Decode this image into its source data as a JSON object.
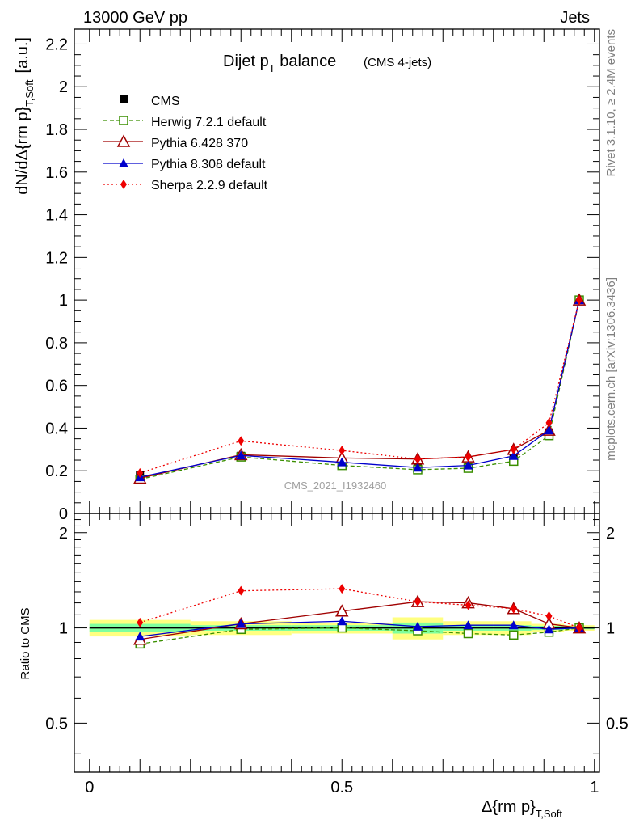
{
  "header": {
    "left": "13000 GeV pp",
    "right": "Jets",
    "side_top": "Rivet 3.1.10, ≥ 2.4M events",
    "side_bottom": "mcplots.cern.ch [arXiv:1306.3436]",
    "watermark": "CMS_2021_I1932460"
  },
  "chart_data": {
    "type": "line",
    "title": "Dijet p",
    "title_sub": "T",
    "title_rest": " balance",
    "title_extra": "(CMS 4-jets)",
    "xlabel": "Δ{rm p}",
    "xlabel_sub": "T,Soft",
    "ylabel": "dN/dΔ{rm p}",
    "ylabel_sub": "T,Soft",
    "ylabel_unit": "[a.u.]",
    "ratio_ylabel": "Ratio to CMS",
    "xlim": [
      -0.03,
      1.01
    ],
    "ylim": [
      0,
      2.27
    ],
    "ratio_ylim": [
      0.35,
      2.3
    ],
    "x_ticks": [
      "0",
      "0.5",
      "1"
    ],
    "y_ticks": [
      "0",
      "0.2",
      "0.4",
      "0.6",
      "0.8",
      "1",
      "1.2",
      "1.4",
      "1.6",
      "1.8",
      "2",
      "2.2"
    ],
    "ratio_ticks": [
      "0.5",
      "1",
      "2"
    ],
    "legend_position": "top-left",
    "x": [
      0.1,
      0.3,
      0.5,
      0.65,
      0.75,
      0.84,
      0.91,
      0.97
    ],
    "data": {
      "name": "CMS",
      "color": "#000000",
      "values": [
        0.18,
        0.27,
        0.23,
        0.21,
        0.22,
        0.26,
        0.38,
        1.0
      ]
    },
    "bands": {
      "inner_color": "#7fff9f",
      "outer_color": "#ffff80",
      "segments": [
        {
          "x0": 0.0,
          "x1": 0.2,
          "inner": [
            0.97,
            1.03
          ],
          "outer": [
            0.94,
            1.06
          ]
        },
        {
          "x0": 0.2,
          "x1": 0.4,
          "inner": [
            0.98,
            1.02
          ],
          "outer": [
            0.95,
            1.05
          ]
        },
        {
          "x0": 0.4,
          "x1": 0.6,
          "inner": [
            0.98,
            1.02
          ],
          "outer": [
            0.96,
            1.04
          ]
        },
        {
          "x0": 0.6,
          "x1": 0.7,
          "inner": [
            0.96,
            1.04
          ],
          "outer": [
            0.92,
            1.08
          ]
        },
        {
          "x0": 0.7,
          "x1": 0.8,
          "inner": [
            0.98,
            1.02
          ],
          "outer": [
            0.95,
            1.05
          ]
        },
        {
          "x0": 0.8,
          "x1": 0.875,
          "inner": [
            0.98,
            1.02
          ],
          "outer": [
            0.95,
            1.05
          ]
        },
        {
          "x0": 0.875,
          "x1": 0.94,
          "inner": [
            0.985,
            1.015
          ],
          "outer": [
            0.97,
            1.03
          ]
        },
        {
          "x0": 0.94,
          "x1": 1.0,
          "inner": [
            0.99,
            1.01
          ],
          "outer": [
            0.98,
            1.02
          ]
        }
      ]
    },
    "series": [
      {
        "name": "Herwig 7.2.1 default",
        "color": "#3a8f00",
        "marker": "open-square",
        "dash": "5,3",
        "values": [
          0.16,
          0.265,
          0.225,
          0.205,
          0.212,
          0.245,
          0.365,
          1.0
        ],
        "ratio": [
          0.89,
          0.99,
          1.0,
          0.98,
          0.96,
          0.95,
          0.97,
          1.0
        ]
      },
      {
        "name": "Pythia 6.428 370",
        "color": "#a00000",
        "marker": "open-triangle",
        "dash": "",
        "values": [
          0.165,
          0.275,
          0.26,
          0.255,
          0.265,
          0.3,
          0.39,
          1.0
        ],
        "ratio": [
          0.92,
          1.03,
          1.13,
          1.21,
          1.2,
          1.15,
          1.03,
          1.0
        ]
      },
      {
        "name": "Pythia 8.308 default",
        "color": "#0000cc",
        "marker": "filled-triangle",
        "dash": "",
        "values": [
          0.17,
          0.272,
          0.24,
          0.215,
          0.225,
          0.27,
          0.39,
          1.0
        ],
        "ratio": [
          0.94,
          1.03,
          1.05,
          1.01,
          1.02,
          1.02,
          0.99,
          1.0
        ]
      },
      {
        "name": "Sherpa 2.2.9 default",
        "color": "#ee0000",
        "marker": "filled-diamond",
        "dash": "2,3",
        "values": [
          0.19,
          0.34,
          0.295,
          0.255,
          0.265,
          0.3,
          0.425,
          1.0
        ],
        "ratio": [
          1.04,
          1.31,
          1.33,
          1.21,
          1.18,
          1.15,
          1.09,
          1.0
        ]
      }
    ]
  }
}
